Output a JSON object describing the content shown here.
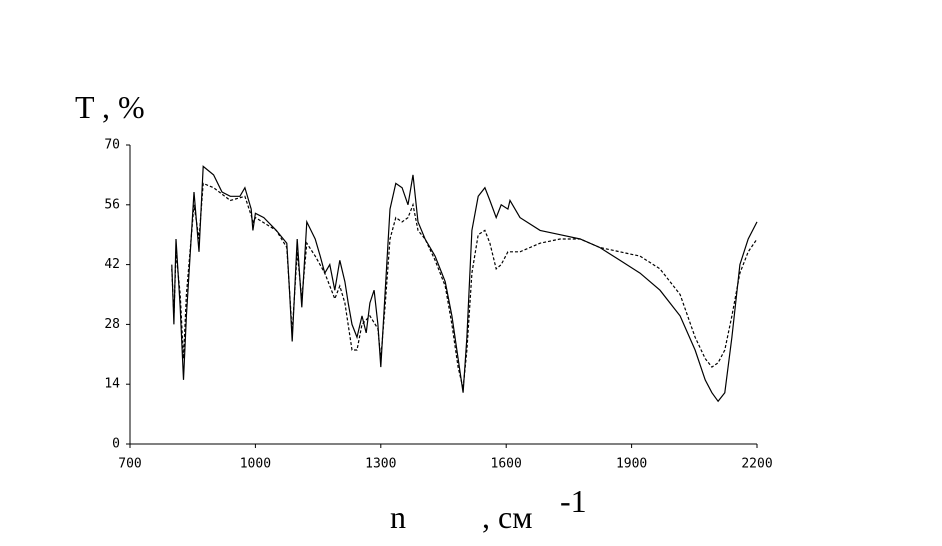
{
  "chart_data": {
    "type": "line",
    "y_label": "T , %",
    "x_label": {
      "symbol": "n",
      "unit": ", см",
      "exponent": "-1"
    },
    "xlim": [
      700,
      2200
    ],
    "xticks": [
      700,
      1000,
      1300,
      1600,
      1900,
      2200
    ],
    "ylim": [
      0,
      70
    ],
    "yticks": [
      0,
      14,
      28,
      42,
      56,
      70
    ],
    "series": [
      {
        "color": "#000000",
        "dashed": false,
        "x": [
          800,
          805,
          810,
          815,
          820,
          828,
          835,
          853,
          865,
          875,
          900,
          920,
          940,
          963,
          975,
          990,
          994,
          1000,
          1020,
          1050,
          1075,
          1082,
          1088,
          1100,
          1111,
          1123,
          1143,
          1155,
          1166,
          1178,
          1190,
          1202,
          1214,
          1222,
          1231,
          1243,
          1255,
          1265,
          1274,
          1284,
          1293,
          1300,
          1310,
          1322,
          1336,
          1351,
          1365,
          1377,
          1389,
          1406,
          1430,
          1454,
          1470,
          1485,
          1497,
          1506,
          1518,
          1533,
          1549,
          1561,
          1576,
          1588,
          1604,
          1609,
          1633,
          1681,
          1729,
          1777,
          1824,
          1872,
          1920,
          1968,
          2016,
          2052,
          2076,
          2092,
          2107,
          2123,
          2140,
          2159,
          2179,
          2200
        ],
        "values": [
          42,
          28,
          48,
          40,
          32,
          15,
          30,
          59,
          45,
          65,
          63,
          59,
          58,
          58,
          60,
          55,
          50,
          54,
          53,
          50,
          47,
          35,
          24,
          48,
          32,
          52,
          48,
          44,
          40,
          42,
          36,
          43,
          38,
          33,
          28,
          25,
          30,
          26,
          33,
          36,
          28,
          18,
          35,
          55,
          61,
          60,
          56,
          63,
          52,
          48,
          44,
          38,
          30,
          20,
          12,
          25,
          50,
          58,
          60,
          57,
          53,
          56,
          55,
          57,
          53,
          50,
          49,
          48,
          46,
          43,
          40,
          36,
          30,
          22,
          15,
          12,
          10,
          12,
          25,
          42,
          48,
          52
        ]
      },
      {
        "color": "#000000",
        "dashed": true,
        "x": [
          800,
          805,
          810,
          820,
          828,
          835,
          853,
          865,
          875,
          900,
          940,
          975,
          995,
          1000,
          1050,
          1075,
          1088,
          1100,
          1111,
          1123,
          1143,
          1166,
          1190,
          1202,
          1214,
          1231,
          1243,
          1255,
          1274,
          1293,
          1300,
          1310,
          1322,
          1336,
          1351,
          1365,
          1377,
          1389,
          1406,
          1430,
          1454,
          1470,
          1485,
          1497,
          1506,
          1518,
          1533,
          1549,
          1561,
          1576,
          1588,
          1604,
          1633,
          1681,
          1729,
          1777,
          1824,
          1872,
          1920,
          1968,
          2016,
          2052,
          2076,
          2092,
          2107,
          2123,
          2140,
          2159,
          2179,
          2200
        ],
        "values": [
          41,
          30,
          45,
          35,
          20,
          35,
          56,
          48,
          61,
          60,
          57,
          58,
          52,
          53,
          50,
          46,
          26,
          45,
          34,
          47,
          44,
          40,
          34,
          37,
          33,
          22,
          22,
          28,
          30,
          27,
          20,
          32,
          48,
          53,
          52,
          53,
          56,
          50,
          48,
          43,
          37,
          28,
          18,
          13,
          22,
          40,
          49,
          50,
          47,
          41,
          42,
          45,
          45,
          47,
          48,
          48,
          46,
          45,
          44,
          41,
          35,
          25,
          20,
          18,
          19,
          22,
          30,
          40,
          45,
          48
        ]
      }
    ]
  }
}
